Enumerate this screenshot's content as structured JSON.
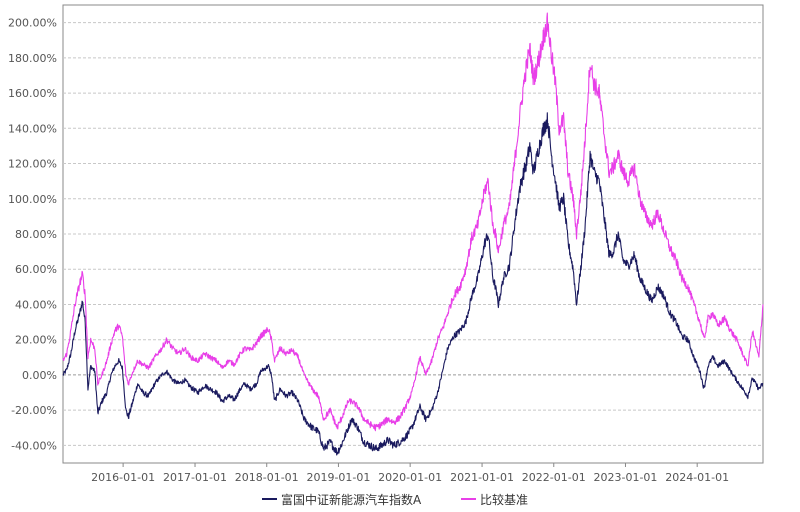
{
  "chart_data": {
    "type": "line",
    "title": "",
    "xlabel": "",
    "ylabel": "",
    "x_range": [
      "2015-03-01",
      "2024-12-01"
    ],
    "ylim": [
      -50,
      210
    ],
    "y_ticks": [
      -40,
      -20,
      0,
      20,
      40,
      60,
      80,
      100,
      120,
      140,
      160,
      180,
      200
    ],
    "y_tick_labels": [
      "-40.00%",
      "-20.00%",
      "0.00%",
      "20.00%",
      "40.00%",
      "60.00%",
      "80.00%",
      "100.00%",
      "120.00%",
      "140.00%",
      "160.00%",
      "180.00%",
      "200.00%"
    ],
    "x_ticks": [
      "2016-01-01",
      "2017-01-01",
      "2018-01-01",
      "2019-01-01",
      "2020-01-01",
      "2021-01-01",
      "2022-01-01",
      "2023-01-01",
      "2024-01-01"
    ],
    "x_tick_labels": [
      "2016-01-01",
      "2017-01-01",
      "2018-01-01",
      "2019-01-01",
      "2020-01-01",
      "2021-01-01",
      "2022-01-01",
      "2023-01-01",
      "2024-01-01"
    ],
    "grid": true,
    "legend_position": "bottom",
    "series": [
      {
        "name": "富国中证新能源汽车指数A",
        "color": "#1a1a5e",
        "points": [
          [
            "2015-03-01",
            0
          ],
          [
            "2015-03-20",
            3
          ],
          [
            "2015-04-10",
            12
          ],
          [
            "2015-05-01",
            25
          ],
          [
            "2015-05-25",
            35
          ],
          [
            "2015-06-08",
            42
          ],
          [
            "2015-06-22",
            30
          ],
          [
            "2015-07-06",
            -8
          ],
          [
            "2015-07-20",
            5
          ],
          [
            "2015-08-10",
            2
          ],
          [
            "2015-08-25",
            -22
          ],
          [
            "2015-09-15",
            -15
          ],
          [
            "2015-10-10",
            -10
          ],
          [
            "2015-11-01",
            0
          ],
          [
            "2015-11-20",
            5
          ],
          [
            "2015-12-10",
            8
          ],
          [
            "2015-12-28",
            4
          ],
          [
            "2016-01-15",
            -20
          ],
          [
            "2016-01-28",
            -24
          ],
          [
            "2016-02-20",
            -15
          ],
          [
            "2016-03-15",
            -5
          ],
          [
            "2016-04-10",
            -10
          ],
          [
            "2016-05-10",
            -12
          ],
          [
            "2016-06-10",
            -5
          ],
          [
            "2016-07-15",
            0
          ],
          [
            "2016-08-10",
            2
          ],
          [
            "2016-09-10",
            -3
          ],
          [
            "2016-10-10",
            -5
          ],
          [
            "2016-11-10",
            -3
          ],
          [
            "2016-12-10",
            -7
          ],
          [
            "2017-01-15",
            -10
          ],
          [
            "2017-02-20",
            -6
          ],
          [
            "2017-03-20",
            -8
          ],
          [
            "2017-04-20",
            -10
          ],
          [
            "2017-05-20",
            -15
          ],
          [
            "2017-06-20",
            -12
          ],
          [
            "2017-07-20",
            -14
          ],
          [
            "2017-08-20",
            -8
          ],
          [
            "2017-09-10",
            -5
          ],
          [
            "2017-10-10",
            -8
          ],
          [
            "2017-11-10",
            -5
          ],
          [
            "2017-12-01",
            2
          ],
          [
            "2018-01-10",
            5
          ],
          [
            "2018-01-25",
            0
          ],
          [
            "2018-02-10",
            -15
          ],
          [
            "2018-03-10",
            -8
          ],
          [
            "2018-04-10",
            -12
          ],
          [
            "2018-05-10",
            -10
          ],
          [
            "2018-06-10",
            -15
          ],
          [
            "2018-07-10",
            -25
          ],
          [
            "2018-08-20",
            -30
          ],
          [
            "2018-09-20",
            -32
          ],
          [
            "2018-10-18",
            -42
          ],
          [
            "2018-11-20",
            -38
          ],
          [
            "2018-12-25",
            -44
          ],
          [
            "2019-01-15",
            -40
          ],
          [
            "2019-02-20",
            -30
          ],
          [
            "2019-03-10",
            -25
          ],
          [
            "2019-04-10",
            -30
          ],
          [
            "2019-05-10",
            -38
          ],
          [
            "2019-06-10",
            -40
          ],
          [
            "2019-07-10",
            -42
          ],
          [
            "2019-08-10",
            -40
          ],
          [
            "2019-09-10",
            -37
          ],
          [
            "2019-10-10",
            -40
          ],
          [
            "2019-11-10",
            -38
          ],
          [
            "2019-12-10",
            -35
          ],
          [
            "2020-01-10",
            -30
          ],
          [
            "2020-02-20",
            -18
          ],
          [
            "2020-03-20",
            -25
          ],
          [
            "2020-04-20",
            -20
          ],
          [
            "2020-05-20",
            -10
          ],
          [
            "2020-06-20",
            5
          ],
          [
            "2020-07-10",
            15
          ],
          [
            "2020-08-10",
            22
          ],
          [
            "2020-09-10",
            25
          ],
          [
            "2020-10-10",
            30
          ],
          [
            "2020-11-10",
            45
          ],
          [
            "2020-12-10",
            55
          ],
          [
            "2021-01-15",
            75
          ],
          [
            "2021-02-01",
            80
          ],
          [
            "2021-02-25",
            55
          ],
          [
            "2021-03-10",
            50
          ],
          [
            "2021-03-25",
            40
          ],
          [
            "2021-04-20",
            55
          ],
          [
            "2021-05-20",
            62
          ],
          [
            "2021-06-15",
            85
          ],
          [
            "2021-07-10",
            105
          ],
          [
            "2021-08-01",
            115
          ],
          [
            "2021-08-15",
            120
          ],
          [
            "2021-09-01",
            130
          ],
          [
            "2021-09-20",
            115
          ],
          [
            "2021-10-15",
            128
          ],
          [
            "2021-11-10",
            140
          ],
          [
            "2021-12-01",
            145
          ],
          [
            "2021-12-20",
            125
          ],
          [
            "2022-01-10",
            110
          ],
          [
            "2022-01-28",
            95
          ],
          [
            "2022-02-20",
            100
          ],
          [
            "2022-03-15",
            75
          ],
          [
            "2022-04-10",
            60
          ],
          [
            "2022-04-27",
            40
          ],
          [
            "2022-05-20",
            62
          ],
          [
            "2022-06-10",
            85
          ],
          [
            "2022-07-05",
            125
          ],
          [
            "2022-07-25",
            115
          ],
          [
            "2022-08-20",
            110
          ],
          [
            "2022-09-20",
            85
          ],
          [
            "2022-10-10",
            68
          ],
          [
            "2022-11-01",
            70
          ],
          [
            "2022-11-25",
            80
          ],
          [
            "2022-12-20",
            65
          ],
          [
            "2023-01-15",
            62
          ],
          [
            "2023-02-15",
            68
          ],
          [
            "2023-03-15",
            55
          ],
          [
            "2023-04-15",
            48
          ],
          [
            "2023-05-15",
            42
          ],
          [
            "2023-06-15",
            50
          ],
          [
            "2023-07-15",
            45
          ],
          [
            "2023-08-15",
            35
          ],
          [
            "2023-09-15",
            30
          ],
          [
            "2023-10-15",
            22
          ],
          [
            "2023-11-15",
            20
          ],
          [
            "2023-12-15",
            10
          ],
          [
            "2024-01-15",
            2
          ],
          [
            "2024-02-05",
            -8
          ],
          [
            "2024-02-25",
            5
          ],
          [
            "2024-03-20",
            10
          ],
          [
            "2024-04-15",
            5
          ],
          [
            "2024-05-20",
            8
          ],
          [
            "2024-06-20",
            2
          ],
          [
            "2024-07-20",
            -3
          ],
          [
            "2024-08-20",
            -8
          ],
          [
            "2024-09-15",
            -12
          ],
          [
            "2024-10-08",
            -2
          ],
          [
            "2024-11-10",
            -8
          ],
          [
            "2024-12-01",
            -5
          ]
        ]
      },
      {
        "name": "比较基准",
        "color": "#e83fe8",
        "points": [
          [
            "2015-03-01",
            8
          ],
          [
            "2015-03-20",
            12
          ],
          [
            "2015-04-10",
            25
          ],
          [
            "2015-05-01",
            40
          ],
          [
            "2015-05-25",
            52
          ],
          [
            "2015-06-08",
            57
          ],
          [
            "2015-06-22",
            45
          ],
          [
            "2015-07-06",
            10
          ],
          [
            "2015-07-20",
            20
          ],
          [
            "2015-08-10",
            15
          ],
          [
            "2015-08-25",
            -5
          ],
          [
            "2015-09-15",
            0
          ],
          [
            "2015-10-10",
            8
          ],
          [
            "2015-11-01",
            18
          ],
          [
            "2015-11-20",
            25
          ],
          [
            "2015-12-10",
            28
          ],
          [
            "2015-12-28",
            22
          ],
          [
            "2016-01-15",
            0
          ],
          [
            "2016-01-28",
            -5
          ],
          [
            "2016-02-20",
            2
          ],
          [
            "2016-03-15",
            8
          ],
          [
            "2016-04-10",
            6
          ],
          [
            "2016-05-10",
            4
          ],
          [
            "2016-06-10",
            10
          ],
          [
            "2016-07-15",
            15
          ],
          [
            "2016-08-10",
            20
          ],
          [
            "2016-09-10",
            15
          ],
          [
            "2016-10-10",
            12
          ],
          [
            "2016-11-10",
            15
          ],
          [
            "2016-12-10",
            10
          ],
          [
            "2017-01-15",
            8
          ],
          [
            "2017-02-20",
            12
          ],
          [
            "2017-03-20",
            10
          ],
          [
            "2017-04-20",
            8
          ],
          [
            "2017-05-20",
            4
          ],
          [
            "2017-06-20",
            8
          ],
          [
            "2017-07-20",
            6
          ],
          [
            "2017-08-20",
            12
          ],
          [
            "2017-09-10",
            15
          ],
          [
            "2017-10-10",
            14
          ],
          [
            "2017-11-10",
            18
          ],
          [
            "2017-12-01",
            22
          ],
          [
            "2018-01-10",
            26
          ],
          [
            "2018-01-25",
            20
          ],
          [
            "2018-02-10",
            8
          ],
          [
            "2018-03-10",
            15
          ],
          [
            "2018-04-10",
            12
          ],
          [
            "2018-05-10",
            14
          ],
          [
            "2018-06-10",
            10
          ],
          [
            "2018-07-10",
            0
          ],
          [
            "2018-08-20",
            -8
          ],
          [
            "2018-09-20",
            -12
          ],
          [
            "2018-10-18",
            -25
          ],
          [
            "2018-11-20",
            -20
          ],
          [
            "2018-12-25",
            -30
          ],
          [
            "2019-01-15",
            -25
          ],
          [
            "2019-02-20",
            -15
          ],
          [
            "2019-03-10",
            -15
          ],
          [
            "2019-04-10",
            -18
          ],
          [
            "2019-05-10",
            -25
          ],
          [
            "2019-06-10",
            -28
          ],
          [
            "2019-07-10",
            -30
          ],
          [
            "2019-08-10",
            -28
          ],
          [
            "2019-09-10",
            -25
          ],
          [
            "2019-10-10",
            -27
          ],
          [
            "2019-11-10",
            -24
          ],
          [
            "2019-12-10",
            -18
          ],
          [
            "2020-01-10",
            -10
          ],
          [
            "2020-02-20",
            10
          ],
          [
            "2020-03-20",
            0
          ],
          [
            "2020-04-20",
            8
          ],
          [
            "2020-05-20",
            20
          ],
          [
            "2020-06-20",
            28
          ],
          [
            "2020-07-10",
            35
          ],
          [
            "2020-08-10",
            45
          ],
          [
            "2020-09-10",
            50
          ],
          [
            "2020-10-10",
            60
          ],
          [
            "2020-11-10",
            78
          ],
          [
            "2020-12-10",
            85
          ],
          [
            "2021-01-15",
            105
          ],
          [
            "2021-02-01",
            110
          ],
          [
            "2021-02-25",
            85
          ],
          [
            "2021-03-10",
            80
          ],
          [
            "2021-03-25",
            70
          ],
          [
            "2021-04-20",
            85
          ],
          [
            "2021-05-20",
            95
          ],
          [
            "2021-06-15",
            120
          ],
          [
            "2021-07-10",
            145
          ],
          [
            "2021-08-01",
            165
          ],
          [
            "2021-08-15",
            175
          ],
          [
            "2021-09-01",
            185
          ],
          [
            "2021-09-20",
            168
          ],
          [
            "2021-10-15",
            178
          ],
          [
            "2021-11-10",
            192
          ],
          [
            "2021-12-01",
            200
          ],
          [
            "2021-12-20",
            182
          ],
          [
            "2022-01-10",
            165
          ],
          [
            "2022-01-28",
            140
          ],
          [
            "2022-02-20",
            145
          ],
          [
            "2022-03-15",
            115
          ],
          [
            "2022-04-10",
            100
          ],
          [
            "2022-04-27",
            80
          ],
          [
            "2022-05-20",
            105
          ],
          [
            "2022-06-10",
            135
          ],
          [
            "2022-07-05",
            178
          ],
          [
            "2022-07-25",
            165
          ],
          [
            "2022-08-20",
            160
          ],
          [
            "2022-09-20",
            132
          ],
          [
            "2022-10-10",
            115
          ],
          [
            "2022-11-01",
            118
          ],
          [
            "2022-11-25",
            125
          ],
          [
            "2022-12-20",
            115
          ],
          [
            "2023-01-15",
            110
          ],
          [
            "2023-02-15",
            118
          ],
          [
            "2023-03-15",
            100
          ],
          [
            "2023-04-15",
            90
          ],
          [
            "2023-05-15",
            85
          ],
          [
            "2023-06-15",
            92
          ],
          [
            "2023-07-15",
            82
          ],
          [
            "2023-08-15",
            72
          ],
          [
            "2023-09-15",
            65
          ],
          [
            "2023-10-15",
            55
          ],
          [
            "2023-11-15",
            50
          ],
          [
            "2023-12-15",
            40
          ],
          [
            "2024-01-15",
            30
          ],
          [
            "2024-02-05",
            20
          ],
          [
            "2024-02-25",
            32
          ],
          [
            "2024-03-20",
            35
          ],
          [
            "2024-04-15",
            28
          ],
          [
            "2024-05-20",
            32
          ],
          [
            "2024-06-20",
            25
          ],
          [
            "2024-07-20",
            20
          ],
          [
            "2024-08-20",
            12
          ],
          [
            "2024-09-15",
            5
          ],
          [
            "2024-10-08",
            25
          ],
          [
            "2024-11-10",
            10
          ],
          [
            "2024-12-01",
            40
          ]
        ]
      }
    ]
  },
  "legend": {
    "items": [
      {
        "label": "富国中证新能源汽车指数A",
        "color": "#1a1a5e"
      },
      {
        "label": "比较基准",
        "color": "#e83fe8"
      }
    ]
  }
}
